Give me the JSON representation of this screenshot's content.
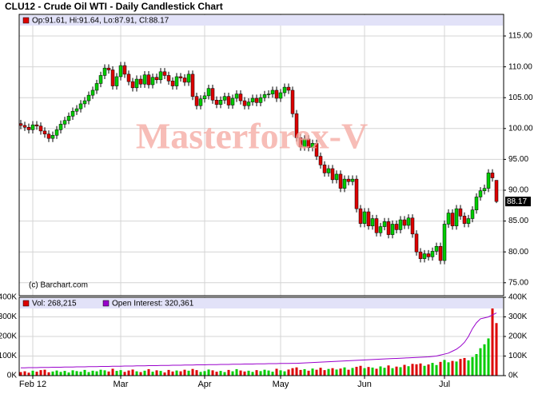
{
  "title": "CLU12 - Crude Oil WTI - Daily Candlestick Chart",
  "watermark": "Masterforex-V",
  "credit": "(c) Barchart.com",
  "chart_data": [
    {
      "type": "candlestick",
      "legend": "Op:91.61, Hi:91.64, Lo:87.91, Cl:88.17",
      "last_label": "88.17",
      "up_color": "#00cc00",
      "down_color": "#dd0000",
      "open": [
        100.8,
        100.5,
        100.2,
        99.8,
        100.6,
        100.4,
        99.6,
        99.1,
        98.4,
        98.9,
        99.8,
        100.7,
        101.3,
        102.0,
        102.8,
        103.2,
        104.0,
        104.5,
        105.4,
        106.2,
        107.3,
        108.6,
        109.8,
        109.5,
        106.9,
        108.4,
        110.2,
        108.8,
        107.6,
        106.6,
        108.0,
        107.2,
        108.7,
        107.1,
        108.3,
        107.9,
        109.2,
        108.6,
        107.7,
        106.9,
        108.4,
        108.2,
        107.5,
        108.8,
        105.2,
        103.7,
        104.8,
        105.3,
        106.5,
        104.6,
        103.9,
        104.6,
        105.2,
        103.8,
        104.9,
        105.6,
        104.5,
        103.7,
        104.3,
        104.9,
        104.2,
        105.0,
        105.5,
        105.6,
        106.2,
        104.9,
        105.8,
        106.7,
        106.2,
        102.4,
        98.5,
        97.0,
        98.3,
        96.9,
        97.6,
        95.5,
        94.1,
        92.8,
        93.5,
        91.7,
        92.6,
        90.3,
        91.8,
        91.4,
        91.8,
        87.0,
        84.6,
        86.5,
        84.2,
        85.4,
        83.1,
        84.1,
        84.9,
        82.8,
        84.5,
        83.6,
        85.2,
        84.3,
        85.5,
        82.9,
        80.0,
        78.9,
        79.7,
        79.2,
        80.1,
        80.9,
        78.6,
        84.5,
        86.3,
        84.2,
        87.0,
        85.8,
        84.6,
        85.4,
        86.8,
        88.9,
        89.9,
        90.3,
        92.8,
        91.61
      ],
      "high": [
        101.4,
        101.1,
        100.8,
        101.2,
        101.2,
        101.0,
        100.2,
        99.7,
        99.5,
        100.4,
        101.3,
        101.9,
        102.6,
        103.4,
        103.8,
        104.6,
        105.1,
        106.0,
        106.8,
        107.9,
        109.2,
        110.4,
        110.4,
        110.1,
        109.0,
        110.8,
        110.8,
        109.4,
        108.2,
        108.6,
        108.6,
        109.3,
        109.3,
        108.9,
        108.9,
        109.8,
        109.8,
        109.2,
        108.3,
        109.0,
        109.0,
        108.8,
        109.4,
        109.4,
        105.8,
        105.4,
        105.9,
        107.1,
        107.1,
        105.2,
        105.2,
        105.8,
        105.8,
        105.5,
        106.2,
        106.2,
        105.1,
        104.9,
        105.5,
        105.5,
        105.6,
        106.1,
        106.2,
        106.8,
        106.8,
        106.4,
        107.3,
        107.3,
        106.8,
        103.0,
        99.1,
        98.9,
        98.9,
        98.2,
        98.2,
        96.1,
        94.7,
        94.1,
        94.1,
        93.2,
        93.2,
        92.4,
        92.4,
        92.4,
        92.4,
        87.6,
        87.1,
        87.1,
        86.0,
        86.0,
        84.7,
        85.5,
        85.5,
        85.1,
        85.1,
        85.8,
        85.8,
        86.1,
        86.1,
        83.5,
        80.6,
        80.3,
        80.3,
        80.7,
        81.5,
        81.5,
        85.1,
        86.9,
        86.9,
        87.6,
        87.6,
        86.4,
        86.0,
        87.4,
        89.5,
        90.5,
        90.9,
        93.4,
        93.4,
        91.64
      ],
      "low": [
        99.9,
        99.6,
        99.2,
        99.2,
        99.8,
        99.0,
        98.5,
        97.8,
        97.8,
        98.3,
        99.2,
        100.1,
        100.7,
        101.4,
        102.2,
        102.6,
        103.4,
        103.9,
        104.8,
        105.6,
        106.7,
        108.0,
        108.9,
        106.3,
        106.3,
        107.8,
        108.2,
        107.0,
        106.0,
        106.0,
        106.6,
        106.6,
        106.5,
        106.5,
        107.3,
        107.3,
        108.0,
        107.1,
        106.3,
        106.3,
        107.6,
        106.9,
        106.9,
        104.6,
        103.1,
        103.1,
        104.2,
        104.7,
        104.0,
        103.3,
        103.3,
        104.0,
        103.2,
        103.2,
        104.3,
        103.9,
        103.1,
        103.1,
        103.7,
        103.6,
        103.6,
        104.4,
        104.9,
        105.0,
        104.3,
        104.3,
        105.2,
        105.6,
        101.8,
        97.9,
        96.4,
        96.4,
        96.3,
        96.3,
        94.9,
        93.5,
        92.2,
        92.2,
        91.1,
        91.1,
        89.7,
        89.7,
        90.8,
        90.8,
        86.4,
        84.0,
        84.0,
        83.6,
        83.6,
        82.5,
        82.5,
        83.5,
        82.2,
        82.2,
        83.0,
        83.0,
        83.7,
        83.7,
        82.3,
        79.4,
        78.3,
        78.3,
        78.6,
        78.6,
        79.5,
        78.0,
        78.0,
        83.9,
        83.6,
        83.6,
        85.2,
        84.0,
        84.0,
        84.8,
        86.2,
        88.3,
        89.3,
        89.7,
        91.4,
        87.91
      ],
      "close": [
        100.5,
        100.2,
        99.8,
        100.6,
        100.4,
        99.6,
        99.1,
        98.4,
        98.9,
        99.8,
        100.7,
        101.3,
        102.0,
        102.8,
        103.2,
        104.0,
        104.5,
        105.4,
        106.2,
        107.3,
        108.6,
        109.8,
        109.5,
        106.9,
        108.4,
        110.2,
        108.8,
        107.6,
        106.6,
        108.0,
        107.2,
        108.7,
        107.1,
        108.3,
        107.9,
        109.2,
        108.6,
        107.7,
        106.9,
        108.4,
        108.2,
        107.5,
        108.8,
        105.2,
        103.7,
        104.8,
        105.3,
        106.5,
        104.6,
        103.9,
        104.6,
        105.2,
        103.8,
        104.9,
        105.6,
        104.5,
        103.7,
        104.3,
        104.9,
        104.2,
        105.0,
        105.5,
        105.6,
        106.2,
        104.9,
        105.8,
        106.7,
        106.2,
        102.4,
        98.5,
        97.0,
        98.3,
        96.9,
        97.6,
        95.5,
        94.1,
        92.8,
        93.5,
        91.7,
        92.6,
        90.3,
        91.8,
        91.4,
        91.8,
        87.0,
        84.6,
        86.5,
        84.2,
        85.4,
        83.1,
        84.1,
        84.9,
        82.8,
        84.5,
        83.6,
        85.2,
        84.3,
        85.5,
        82.9,
        80.0,
        78.9,
        79.7,
        79.2,
        80.1,
        80.9,
        78.6,
        84.5,
        86.3,
        84.2,
        87.0,
        85.8,
        84.6,
        85.4,
        86.8,
        88.9,
        89.9,
        90.3,
        92.8,
        92.0,
        88.17
      ],
      "ylim": [
        72.9,
        118.5
      ],
      "yticks": [
        {
          "value": 75,
          "label": "75.00"
        },
        {
          "value": 80,
          "label": "80.00"
        },
        {
          "value": 85,
          "label": "85.00"
        },
        {
          "value": 90,
          "label": "90.00"
        },
        {
          "value": 95,
          "label": "95.00"
        },
        {
          "value": 100,
          "label": "100.00"
        },
        {
          "value": 105,
          "label": "105.00"
        },
        {
          "value": 110,
          "label": "110.00"
        },
        {
          "value": 115,
          "label": "115.00"
        }
      ],
      "xticks": [
        {
          "value": 3,
          "label": "Feb 12"
        },
        {
          "value": 25,
          "label": "Mar"
        },
        {
          "value": 46,
          "label": "Apr"
        },
        {
          "value": 65,
          "label": "May"
        },
        {
          "value": 86,
          "label": "Jun"
        },
        {
          "value": 106,
          "label": "Jul"
        }
      ],
      "grid": true
    },
    {
      "type": "bar",
      "series": [
        {
          "name": "Vol: 268,215",
          "values": [
            18,
            22,
            15,
            25,
            20,
            28,
            30,
            17,
            21,
            26,
            19,
            24,
            16,
            27,
            23,
            20,
            29,
            18,
            25,
            22,
            30,
            27,
            21,
            35,
            24,
            28,
            19,
            26,
            31,
            22,
            18,
            25,
            33,
            20,
            27,
            24,
            16,
            29,
            21,
            26,
            22,
            30,
            25,
            34,
            28,
            19,
            23,
            31,
            27,
            20,
            24,
            18,
            29,
            22,
            33,
            26,
            21,
            25,
            19,
            28,
            23,
            30,
            26,
            20,
            35,
            27,
            22,
            31,
            38,
            42,
            29,
            33,
            25,
            36,
            30,
            40,
            28,
            34,
            38,
            31,
            36,
            42,
            30,
            39,
            45,
            50,
            38,
            44,
            41,
            35,
            47,
            40,
            52,
            38,
            46,
            43,
            55,
            48,
            60,
            58,
            62,
            50,
            57,
            65,
            54,
            70,
            80,
            68,
            75,
            72,
            85,
            90,
            78,
            95,
            110,
            140,
            160,
            190,
            350,
            268.215
          ],
          "color": "#dd0000"
        },
        {
          "name": "Open Interest: 320,361",
          "type": "line",
          "color": "#9900cc",
          "values": [
            40,
            40,
            41,
            41,
            41,
            42,
            42,
            42,
            43,
            43,
            43,
            44,
            44,
            44,
            45,
            45,
            45,
            46,
            46,
            46,
            47,
            47,
            47,
            48,
            48,
            48,
            49,
            49,
            49,
            50,
            50,
            50,
            51,
            51,
            51,
            52,
            52,
            52,
            53,
            53,
            53,
            54,
            54,
            54,
            55,
            55,
            55,
            56,
            56,
            56,
            57,
            57,
            57,
            58,
            58,
            58,
            59,
            59,
            59,
            60,
            60,
            60,
            61,
            61,
            61,
            62,
            62,
            62,
            63,
            63,
            64,
            65,
            66,
            67,
            68,
            69,
            70,
            71,
            72,
            73,
            74,
            75,
            76,
            77,
            78,
            79,
            80,
            81,
            82,
            83,
            84,
            85,
            86,
            87,
            88,
            89,
            90,
            91,
            92,
            93,
            94,
            95,
            96,
            98,
            100,
            105,
            110,
            115,
            125,
            135,
            150,
            170,
            200,
            240,
            270,
            290,
            295,
            300,
            310,
            320.361
          ]
        }
      ],
      "ylim": [
        0,
        400
      ],
      "yticks": [
        {
          "value": 0,
          "label": "0K"
        },
        {
          "value": 100,
          "label": "100K"
        },
        {
          "value": 200,
          "label": "200K"
        },
        {
          "value": 300,
          "label": "300K"
        },
        {
          "value": 400,
          "label": "400K"
        }
      ],
      "grid": true
    }
  ]
}
